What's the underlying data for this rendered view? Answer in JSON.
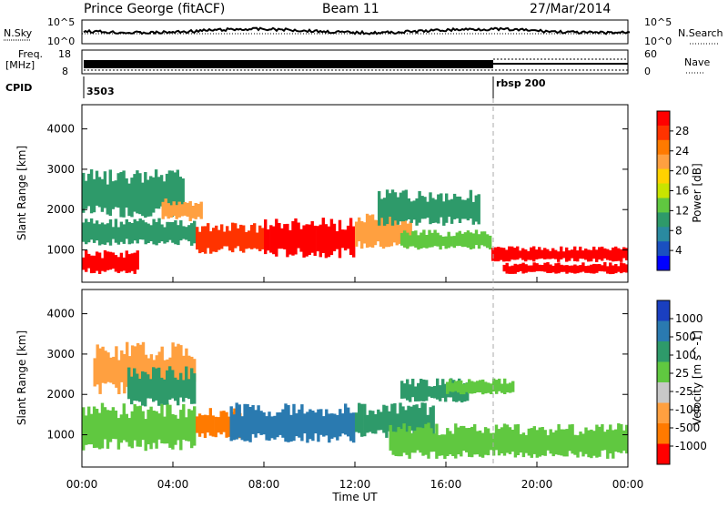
{
  "header": {
    "station": "Prince George (fitACF)",
    "beam": "Beam 11",
    "date": "27/Mar/2014"
  },
  "noise_panel": {
    "left_label": "N.Sky",
    "left_ticks": [
      "10^5",
      "10^0"
    ],
    "right_ticks": [
      "10^5",
      "10^0"
    ],
    "right_label": "N.Search"
  },
  "freq_panel": {
    "left_label_1": "Freq.",
    "left_label_2": "[MHz]",
    "left_ticks": [
      "18",
      "8"
    ],
    "right_ticks": [
      "60",
      "0"
    ],
    "right_label": "Nave"
  },
  "cpid_panel": {
    "label": "CPID",
    "segments": [
      {
        "name": "3503",
        "start_hour": 0
      },
      {
        "name": "rbsp 200",
        "start_hour": 18
      }
    ]
  },
  "power_colorbar": {
    "label": "Power [dB]",
    "ticks": [
      "28",
      "24",
      "20",
      "16",
      "12",
      "8",
      "4"
    ],
    "colors": [
      "#ff0000",
      "#ff3300",
      "#ff7a00",
      "#ffa040",
      "#ffd200",
      "#c8e400",
      "#60c840",
      "#2e9a6a",
      "#2a8aa0",
      "#1a50c0",
      "#0000ff"
    ]
  },
  "velocity_colorbar": {
    "label": "Velocity [m s^-1]",
    "ticks": [
      "1000",
      "500",
      "100",
      "25",
      "-25",
      "-100",
      "-500",
      "-1000"
    ],
    "colors": [
      "#1a3fc0",
      "#2a7ab0",
      "#2e9a6a",
      "#60c840",
      "#c8c8c8",
      "#ffa040",
      "#ff7a00",
      "#ff0000"
    ]
  },
  "chart_data": [
    {
      "type": "heatmap",
      "name": "power",
      "ylabel": "Slant Range [km]",
      "yticks": [
        "4000",
        "3000",
        "2000",
        "1000"
      ],
      "ylim": [
        200,
        4600
      ],
      "xlim": [
        0,
        24
      ],
      "bands": [
        {
          "t0": 0.0,
          "t1": 5.0,
          "r0": 1100,
          "r1": 1800,
          "level": 8
        },
        {
          "t0": 0.0,
          "t1": 4.5,
          "r0": 1800,
          "r1": 3000,
          "level": 8
        },
        {
          "t0": 3.5,
          "t1": 5.3,
          "r0": 1700,
          "r1": 2300,
          "level": 20
        },
        {
          "t0": 0.0,
          "t1": 2.5,
          "r0": 400,
          "r1": 1000,
          "level": 28
        },
        {
          "t0": 5.0,
          "t1": 8.0,
          "r0": 900,
          "r1": 1700,
          "level": 24
        },
        {
          "t0": 8.0,
          "t1": 12.0,
          "r0": 800,
          "r1": 1800,
          "level": 28
        },
        {
          "t0": 12.0,
          "t1": 14.5,
          "r0": 1000,
          "r1": 1900,
          "level": 20
        },
        {
          "t0": 14.0,
          "t1": 18.0,
          "r0": 1000,
          "r1": 1500,
          "level": 12
        },
        {
          "t0": 13.0,
          "t1": 17.5,
          "r0": 1600,
          "r1": 2500,
          "level": 8
        },
        {
          "t0": 18.0,
          "t1": 24.0,
          "r0": 700,
          "r1": 1100,
          "level": 28
        },
        {
          "t0": 18.5,
          "t1": 24.0,
          "r0": 400,
          "r1": 700,
          "level": 28
        }
      ]
    },
    {
      "type": "heatmap",
      "name": "velocity",
      "ylabel": "Slant Range [km]",
      "yticks": [
        "4000",
        "3000",
        "2000",
        "1000"
      ],
      "ylim": [
        200,
        4600
      ],
      "xlim": [
        0,
        24
      ],
      "xticks": [
        "00:00",
        "04:00",
        "08:00",
        "12:00",
        "16:00",
        "20:00",
        "00:00"
      ],
      "xlabel": "Time UT",
      "bands": [
        {
          "t0": 0.0,
          "t1": 5.0,
          "r0": 600,
          "r1": 1800,
          "level": 0
        },
        {
          "t0": 0.5,
          "t1": 5.0,
          "r0": 2000,
          "r1": 3300,
          "level": -100
        },
        {
          "t0": 2.0,
          "t1": 5.0,
          "r0": 1700,
          "r1": 2700,
          "level": 100
        },
        {
          "t0": 5.0,
          "t1": 7.0,
          "r0": 900,
          "r1": 1700,
          "level": -500
        },
        {
          "t0": 6.5,
          "t1": 12.0,
          "r0": 800,
          "r1": 1800,
          "level": 500
        },
        {
          "t0": 12.0,
          "t1": 15.5,
          "r0": 900,
          "r1": 1800,
          "level": 100
        },
        {
          "t0": 14.0,
          "t1": 17.0,
          "r0": 1800,
          "r1": 2400,
          "level": 100
        },
        {
          "t0": 13.5,
          "t1": 24.0,
          "r0": 400,
          "r1": 1300,
          "level": 0
        },
        {
          "t0": 16.0,
          "t1": 19.0,
          "r0": 2000,
          "r1": 2400,
          "level": 0
        }
      ]
    }
  ]
}
